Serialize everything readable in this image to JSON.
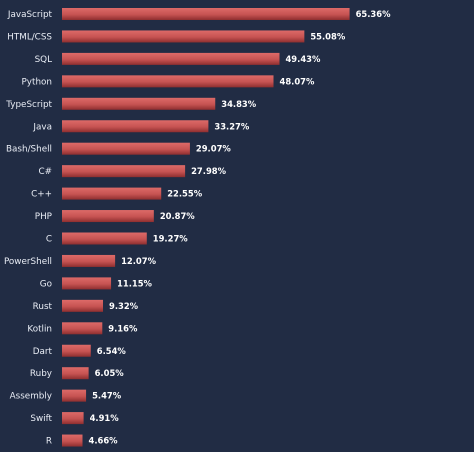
{
  "chart_data": {
    "type": "bar",
    "orientation": "horizontal",
    "categories": [
      "JavaScript",
      "HTML/CSS",
      "SQL",
      "Python",
      "TypeScript",
      "Java",
      "Bash/Shell",
      "C#",
      "C++",
      "PHP",
      "C",
      "PowerShell",
      "Go",
      "Rust",
      "Kotlin",
      "Dart",
      "Ruby",
      "Assembly",
      "Swift",
      "R"
    ],
    "values": [
      65.36,
      55.08,
      49.43,
      48.07,
      34.83,
      33.27,
      29.07,
      27.98,
      22.55,
      20.87,
      19.27,
      12.07,
      11.15,
      9.32,
      9.16,
      6.54,
      6.05,
      5.47,
      4.91,
      4.66
    ],
    "value_labels": [
      "65.36%",
      "55.08%",
      "49.43%",
      "48.07%",
      "34.83%",
      "33.27%",
      "29.07%",
      "27.98%",
      "22.55%",
      "20.87%",
      "19.27%",
      "12.07%",
      "11.15%",
      "9.32%",
      "9.16%",
      "6.54%",
      "6.05%",
      "5.47%",
      "4.91%",
      "4.66%"
    ],
    "xlim": [
      0,
      100
    ],
    "grid": false,
    "colors": {
      "background": "#212c44",
      "bar": "#c65352",
      "bar_highlight": "#dd6a68",
      "bar_shadow": "#8e2e2f",
      "category_text": "#e9edf5",
      "value_text": "#ffffff"
    }
  }
}
